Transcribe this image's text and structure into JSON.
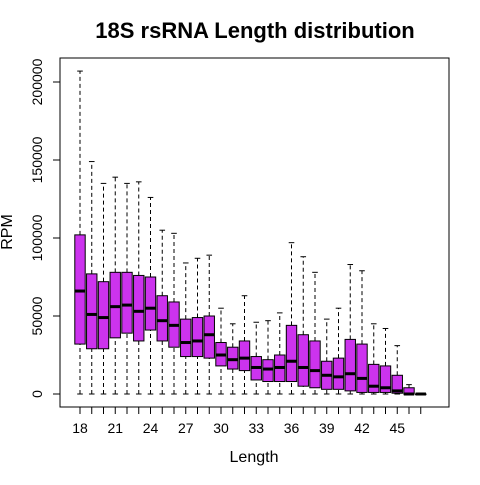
{
  "chart_data": {
    "type": "boxplot",
    "title": "18S rsRNA Length distribution",
    "xlabel": "Length",
    "ylabel": "RPM",
    "ylim": [
      0,
      215000
    ],
    "y_ticks": [
      0,
      50000,
      100000,
      150000,
      200000
    ],
    "x_tick_labels": [
      18,
      21,
      24,
      27,
      30,
      33,
      36,
      39,
      42,
      45
    ],
    "box_color": "#cc33ee",
    "categories": [
      18,
      19,
      20,
      21,
      22,
      23,
      24,
      25,
      26,
      27,
      28,
      29,
      30,
      31,
      32,
      33,
      34,
      35,
      36,
      37,
      38,
      39,
      40,
      41,
      42,
      43,
      44,
      45,
      46,
      47
    ],
    "boxes": [
      {
        "x": 18,
        "min": 0,
        "q1": 32000,
        "median": 66000,
        "q3": 102000,
        "max": 207000
      },
      {
        "x": 19,
        "min": 0,
        "q1": 29000,
        "median": 51000,
        "q3": 77000,
        "max": 149000
      },
      {
        "x": 20,
        "min": 0,
        "q1": 29000,
        "median": 49000,
        "q3": 72000,
        "max": 135000
      },
      {
        "x": 21,
        "min": 0,
        "q1": 36000,
        "median": 56000,
        "q3": 78000,
        "max": 139000
      },
      {
        "x": 22,
        "min": 0,
        "q1": 39000,
        "median": 57000,
        "q3": 78000,
        "max": 135000
      },
      {
        "x": 23,
        "min": 0,
        "q1": 34000,
        "median": 53000,
        "q3": 76000,
        "max": 136000
      },
      {
        "x": 24,
        "min": 0,
        "q1": 41000,
        "median": 55000,
        "q3": 75000,
        "max": 126000
      },
      {
        "x": 25,
        "min": 0,
        "q1": 34000,
        "median": 47000,
        "q3": 63000,
        "max": 105000
      },
      {
        "x": 26,
        "min": 0,
        "q1": 30000,
        "median": 44000,
        "q3": 59000,
        "max": 103000
      },
      {
        "x": 27,
        "min": 0,
        "q1": 24000,
        "median": 33000,
        "q3": 48000,
        "max": 84000
      },
      {
        "x": 28,
        "min": 0,
        "q1": 24000,
        "median": 34000,
        "q3": 49000,
        "max": 87000
      },
      {
        "x": 29,
        "min": 0,
        "q1": 23000,
        "median": 38000,
        "q3": 50000,
        "max": 89000
      },
      {
        "x": 30,
        "min": 0,
        "q1": 18000,
        "median": 25000,
        "q3": 33000,
        "max": 55000
      },
      {
        "x": 31,
        "min": 0,
        "q1": 16000,
        "median": 22000,
        "q3": 30000,
        "max": 45000
      },
      {
        "x": 32,
        "min": 0,
        "q1": 15000,
        "median": 23000,
        "q3": 34000,
        "max": 63000
      },
      {
        "x": 33,
        "min": 0,
        "q1": 9000,
        "median": 17000,
        "q3": 24000,
        "max": 46000
      },
      {
        "x": 34,
        "min": 0,
        "q1": 8000,
        "median": 16000,
        "q3": 22000,
        "max": 47000
      },
      {
        "x": 35,
        "min": 0,
        "q1": 8000,
        "median": 17000,
        "q3": 25000,
        "max": 52000
      },
      {
        "x": 36,
        "min": 0,
        "q1": 8000,
        "median": 21000,
        "q3": 44000,
        "max": 97000
      },
      {
        "x": 37,
        "min": 0,
        "q1": 5000,
        "median": 17000,
        "q3": 38000,
        "max": 88000
      },
      {
        "x": 38,
        "min": 0,
        "q1": 4000,
        "median": 15000,
        "q3": 34000,
        "max": 78000
      },
      {
        "x": 39,
        "min": 0,
        "q1": 3000,
        "median": 12000,
        "q3": 21000,
        "max": 48000
      },
      {
        "x": 40,
        "min": 0,
        "q1": 3000,
        "median": 11000,
        "q3": 23000,
        "max": 55000
      },
      {
        "x": 41,
        "min": 0,
        "q1": 2000,
        "median": 13000,
        "q3": 35000,
        "max": 83000
      },
      {
        "x": 42,
        "min": 0,
        "q1": 1000,
        "median": 10000,
        "q3": 32000,
        "max": 79000
      },
      {
        "x": 43,
        "min": 0,
        "q1": 1000,
        "median": 5000,
        "q3": 19000,
        "max": 45000
      },
      {
        "x": 44,
        "min": 0,
        "q1": 1000,
        "median": 4000,
        "q3": 18000,
        "max": 42000
      },
      {
        "x": 45,
        "min": 0,
        "q1": 500,
        "median": 2000,
        "q3": 12000,
        "max": 31000
      },
      {
        "x": 46,
        "min": 0,
        "q1": 0,
        "median": 0,
        "q3": 4000,
        "max": 6000
      },
      {
        "x": 47,
        "min": 0,
        "q1": 0,
        "median": 0,
        "q3": 0,
        "max": 0
      }
    ]
  }
}
